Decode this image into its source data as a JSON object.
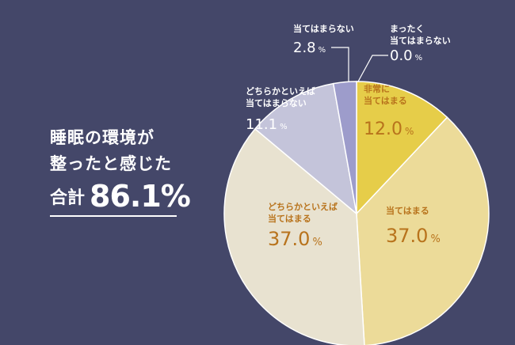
{
  "headline": {
    "line1": "睡眠の環境が",
    "line2": "整ったと感じた",
    "total_label": "合計",
    "total_value": "86.1%"
  },
  "chart_data": {
    "type": "pie",
    "unit": "%",
    "start": "12 o'clock",
    "direction": "clockwise",
    "slices": [
      {
        "label": "非常に\n当てはまる",
        "value": 12.0,
        "display": "12.0",
        "color": "#e6cd49",
        "text_color": "#b8731c"
      },
      {
        "label": "当てはまる",
        "value": 37.0,
        "display": "37.0",
        "color": "#ecdb99",
        "text_color": "#b8731c"
      },
      {
        "label": "どちらかといえば\n当てはまる",
        "value": 37.0,
        "display": "37.0",
        "color": "#e8e2d0",
        "text_color": "#b8731c"
      },
      {
        "label": "どちらかといえば\n当てはまらない",
        "value": 11.1,
        "display": "11.1",
        "color": "#c4c4da",
        "text_color": "#ffffff"
      },
      {
        "label": "当てはまらない",
        "value": 2.8,
        "display": "2.8",
        "color": "#9d9ccb",
        "text_color": "#ffffff"
      },
      {
        "label": "まったく\n当てはまらない",
        "value": 0.0,
        "display": "0.0",
        "color": "#ffffff",
        "text_color": "#ffffff"
      }
    ]
  }
}
